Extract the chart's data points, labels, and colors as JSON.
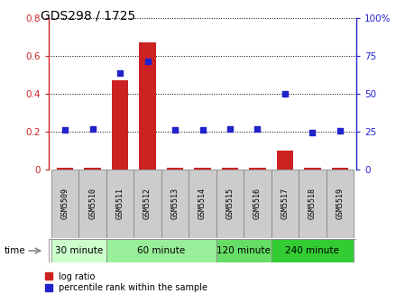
{
  "title": "GDS298 / 1725",
  "samples": [
    "GSM5509",
    "GSM5510",
    "GSM5511",
    "GSM5512",
    "GSM5513",
    "GSM5514",
    "GSM5515",
    "GSM5516",
    "GSM5517",
    "GSM5518",
    "GSM5519"
  ],
  "log_ratio": [
    0.01,
    0.01,
    0.47,
    0.67,
    0.01,
    0.01,
    0.01,
    0.01,
    0.1,
    0.01,
    0.01
  ],
  "percentile_pct": [
    26.5,
    27.0,
    63.5,
    71.5,
    26.2,
    26.2,
    26.7,
    26.7,
    49.8,
    24.5,
    25.8
  ],
  "ylim_left": [
    0,
    0.8
  ],
  "ylim_right": [
    0,
    100
  ],
  "yticks_left": [
    0.0,
    0.2,
    0.4,
    0.6,
    0.8
  ],
  "ytick_labels_left": [
    "0",
    "0.2",
    "0.4",
    "0.6",
    "0.8"
  ],
  "yticks_right": [
    0,
    25,
    50,
    75,
    100
  ],
  "ytick_labels_right": [
    "0",
    "25",
    "50",
    "75",
    "100%"
  ],
  "bar_color": "#cc2222",
  "scatter_color": "#2222cc",
  "time_groups": [
    {
      "label": "30 minute",
      "start": 0,
      "end": 1,
      "color": "#ccffcc"
    },
    {
      "label": "60 minute",
      "start": 2,
      "end": 5,
      "color": "#99ee99"
    },
    {
      "label": "120 minute",
      "start": 6,
      "end": 7,
      "color": "#66dd66"
    },
    {
      "label": "240 minute",
      "start": 8,
      "end": 10,
      "color": "#33cc33"
    }
  ],
  "tick_color_left": "#cc2222",
  "tick_color_right": "#2222cc",
  "legend_log": "log ratio",
  "legend_pct": "percentile rank within the sample"
}
